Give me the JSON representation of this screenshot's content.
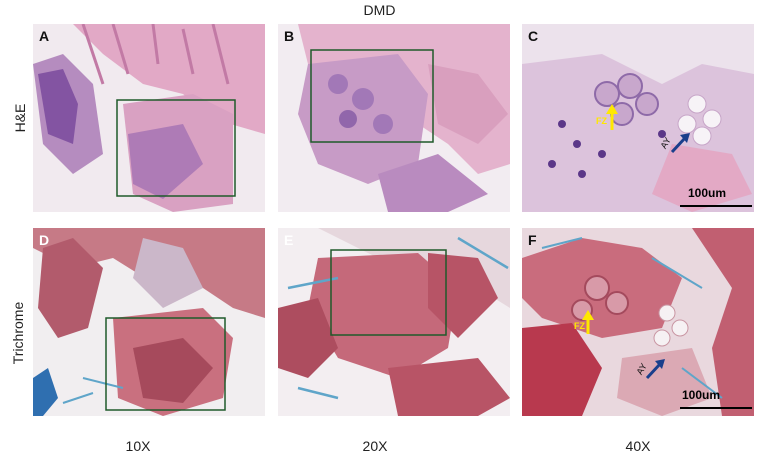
{
  "figure": {
    "title": "DMD",
    "rows": [
      "H&E",
      "Trichrome"
    ],
    "columns": [
      "10X",
      "20X",
      "40X"
    ]
  },
  "panels": [
    {
      "letter": "A"
    },
    {
      "letter": "B"
    },
    {
      "letter": "C",
      "annotations": [
        "FZ",
        "AY"
      ],
      "scalebar": "100um"
    },
    {
      "letter": "D"
    },
    {
      "letter": "E"
    },
    {
      "letter": "F",
      "annotations": [
        "FZ",
        "AY"
      ],
      "scalebar": "100um"
    }
  ],
  "colors": {
    "he_pink": "#e2a9c6",
    "he_purple": "#7a4a9c",
    "trichrome_red": "#b94a5a",
    "trichrome_blue": "#5fa5c9",
    "box_green": "#1f5a2a",
    "arrow_yellow": "#ffe800",
    "arrow_blue": "#1a3f8c"
  }
}
